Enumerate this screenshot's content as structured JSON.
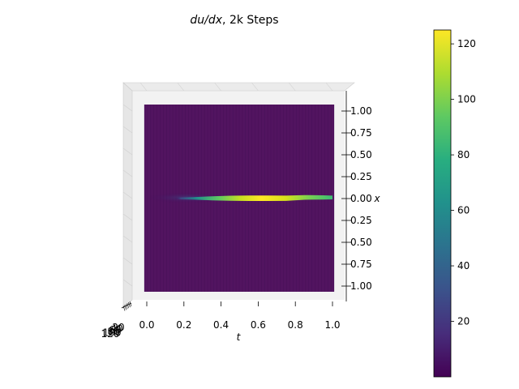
{
  "chart_data": {
    "type": "surface",
    "title_main": "du/dx",
    "title_suffix": ", 2k Steps",
    "xlabel": "t",
    "ylabel": "x",
    "xlim": [
      0,
      1.05
    ],
    "ylim": [
      -1.1,
      1.1
    ],
    "x_ticks": [
      "0.0",
      "0.2",
      "0.4",
      "0.6",
      "0.8",
      "1.0"
    ],
    "x_tick_values": [
      0.0,
      0.2,
      0.4,
      0.6,
      0.8,
      1.0
    ],
    "y_ticks": [
      "1.00",
      "0.75",
      "0.50",
      "0.25",
      "0.00",
      "0.25",
      "0.50",
      "0.75",
      "1.00"
    ],
    "y_tick_values": [
      1.0,
      0.75,
      0.5,
      0.25,
      0.0,
      -0.25,
      -0.5,
      -0.75,
      -1.0
    ],
    "z_ticks": [
      "20",
      "40",
      "60",
      "80",
      "100",
      "120"
    ],
    "colorbar": {
      "min": 0,
      "max": 125,
      "ticks": [
        "20",
        "40",
        "60",
        "80",
        "100",
        "120"
      ],
      "tick_values": [
        20,
        40,
        60,
        80,
        100,
        120
      ],
      "colormap": "viridis"
    },
    "shock_ridge": {
      "t": [
        0.15,
        0.25,
        0.35,
        0.45,
        0.55,
        0.65,
        0.75,
        0.85,
        0.95,
        1.0
      ],
      "x": [
        0.0,
        0.0,
        0.0,
        0.0,
        0.0,
        0.0,
        0.0,
        0.01,
        0.01,
        0.01
      ],
      "value": [
        8,
        30,
        80,
        110,
        120,
        123,
        115,
        100,
        85,
        70
      ]
    },
    "background_value": 1
  }
}
